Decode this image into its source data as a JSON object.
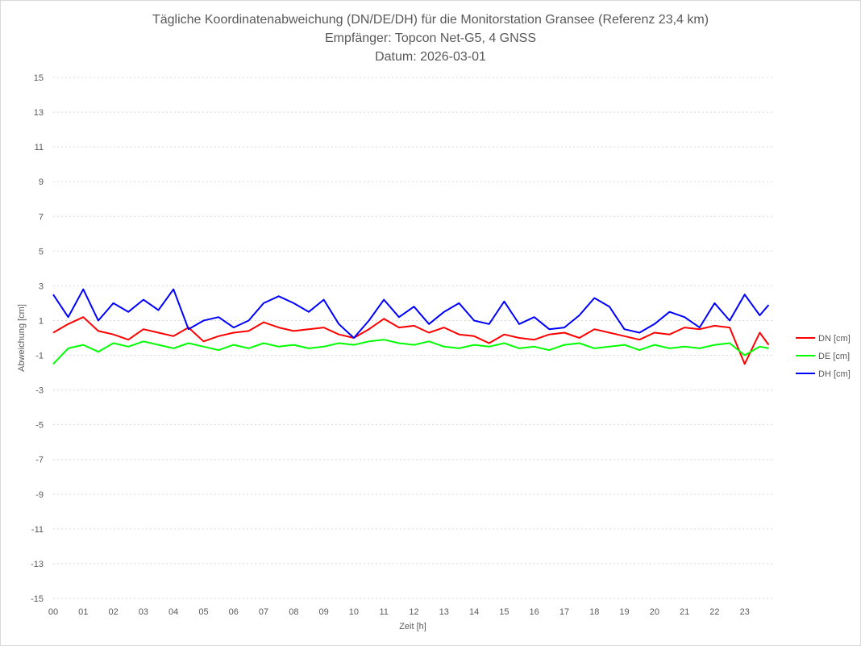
{
  "chart_data": {
    "type": "line",
    "title": "Tägliche Koordinatenabweichung (DN/DE/DH) für die Monitorstation Gransee (Referenz 23,4 km)",
    "subtitle": "Empfänger: Topcon Net-G5, 4 GNSS",
    "date_label": "Datum: 2026-03-01",
    "xlabel": "Zeit [h]",
    "ylabel": "Abweichung [cm]",
    "x_ticks": [
      "00",
      "01",
      "02",
      "03",
      "04",
      "05",
      "06",
      "07",
      "08",
      "09",
      "10",
      "11",
      "12",
      "13",
      "14",
      "15",
      "16",
      "17",
      "18",
      "19",
      "20",
      "21",
      "22",
      "23"
    ],
    "xlim": [
      0,
      24
    ],
    "ylim": [
      -15,
      15
    ],
    "y_ticks": [
      15,
      13,
      11,
      9,
      7,
      5,
      3,
      1,
      -1,
      -3,
      -5,
      -7,
      -9,
      -11,
      -13,
      -15
    ],
    "grid": true,
    "legend_position": "right",
    "series": [
      {
        "name": "DN [cm]",
        "color": "#ff0000",
        "x": [
          0,
          0.5,
          1,
          1.5,
          2,
          2.5,
          3,
          3.5,
          4,
          4.5,
          5,
          5.5,
          6,
          6.5,
          7,
          7.5,
          8,
          8.5,
          9,
          9.5,
          10,
          10.5,
          11,
          11.5,
          12,
          12.5,
          13,
          13.5,
          14,
          14.5,
          15,
          15.5,
          16,
          16.5,
          17,
          17.5,
          18,
          18.5,
          19,
          19.5,
          20,
          20.5,
          21,
          21.5,
          22,
          22.5,
          23,
          23.5,
          23.8
        ],
        "values": [
          0.3,
          0.8,
          1.2,
          0.4,
          0.2,
          -0.1,
          0.5,
          0.3,
          0.1,
          0.6,
          -0.2,
          0.1,
          0.3,
          0.4,
          0.9,
          0.6,
          0.4,
          0.5,
          0.6,
          0.2,
          0.0,
          0.5,
          1.1,
          0.6,
          0.7,
          0.3,
          0.6,
          0.2,
          0.1,
          -0.3,
          0.2,
          0.0,
          -0.1,
          0.2,
          0.3,
          0.0,
          0.5,
          0.3,
          0.1,
          -0.1,
          0.3,
          0.2,
          0.6,
          0.5,
          0.7,
          0.6,
          -1.5,
          0.3,
          -0.4
        ]
      },
      {
        "name": "DE [cm]",
        "color": "#00ff00",
        "x": [
          0,
          0.5,
          1,
          1.5,
          2,
          2.5,
          3,
          3.5,
          4,
          4.5,
          5,
          5.5,
          6,
          6.5,
          7,
          7.5,
          8,
          8.5,
          9,
          9.5,
          10,
          10.5,
          11,
          11.5,
          12,
          12.5,
          13,
          13.5,
          14,
          14.5,
          15,
          15.5,
          16,
          16.5,
          17,
          17.5,
          18,
          18.5,
          19,
          19.5,
          20,
          20.5,
          21,
          21.5,
          22,
          22.5,
          23,
          23.5,
          23.8
        ],
        "values": [
          -1.5,
          -0.6,
          -0.4,
          -0.8,
          -0.3,
          -0.5,
          -0.2,
          -0.4,
          -0.6,
          -0.3,
          -0.5,
          -0.7,
          -0.4,
          -0.6,
          -0.3,
          -0.5,
          -0.4,
          -0.6,
          -0.5,
          -0.3,
          -0.4,
          -0.2,
          -0.1,
          -0.3,
          -0.4,
          -0.2,
          -0.5,
          -0.6,
          -0.4,
          -0.5,
          -0.3,
          -0.6,
          -0.5,
          -0.7,
          -0.4,
          -0.3,
          -0.6,
          -0.5,
          -0.4,
          -0.7,
          -0.4,
          -0.6,
          -0.5,
          -0.6,
          -0.4,
          -0.3,
          -1.0,
          -0.5,
          -0.6
        ]
      },
      {
        "name": "DH [cm]",
        "color": "#0000ff",
        "x": [
          0,
          0.5,
          1,
          1.5,
          2,
          2.5,
          3,
          3.5,
          4,
          4.5,
          5,
          5.5,
          6,
          6.5,
          7,
          7.5,
          8,
          8.5,
          9,
          9.5,
          10,
          10.5,
          11,
          11.5,
          12,
          12.5,
          13,
          13.5,
          14,
          14.5,
          15,
          15.5,
          16,
          16.5,
          17,
          17.5,
          18,
          18.5,
          19,
          19.5,
          20,
          20.5,
          21,
          21.5,
          22,
          22.5,
          23,
          23.5,
          23.8
        ],
        "values": [
          2.5,
          1.2,
          2.8,
          1.0,
          2.0,
          1.5,
          2.2,
          1.6,
          2.8,
          0.5,
          1.0,
          1.2,
          0.6,
          1.0,
          2.0,
          2.4,
          2.0,
          1.5,
          2.2,
          0.8,
          0.0,
          1.0,
          2.2,
          1.2,
          1.8,
          0.8,
          1.5,
          2.0,
          1.0,
          0.8,
          2.1,
          0.8,
          1.2,
          0.5,
          0.6,
          1.3,
          2.3,
          1.8,
          0.5,
          0.3,
          0.8,
          1.5,
          1.2,
          0.6,
          2.0,
          1.0,
          2.5,
          1.3,
          1.9
        ]
      }
    ]
  }
}
